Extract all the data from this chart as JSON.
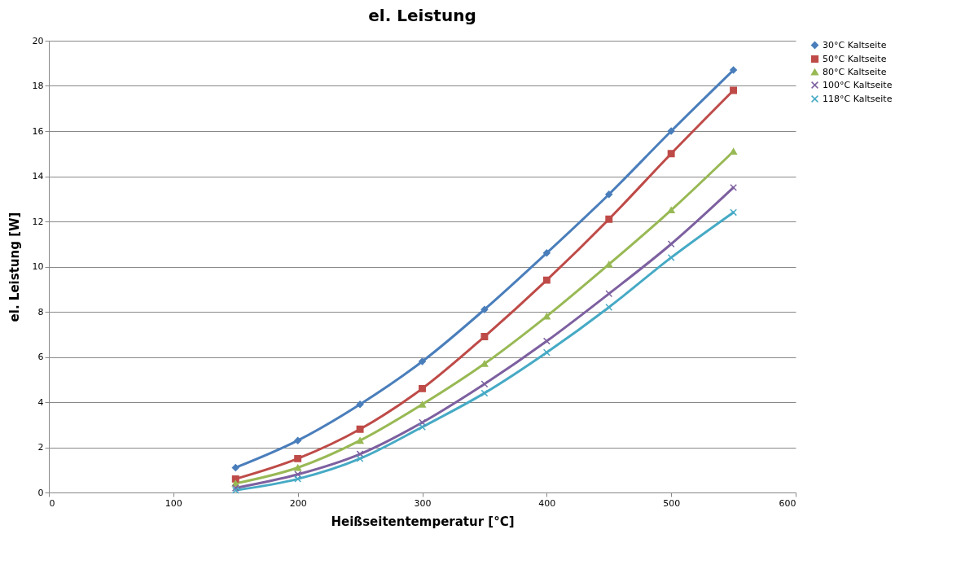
{
  "chart_data": {
    "type": "line",
    "title": "el. Leistung",
    "xlabel": "Heißseitentemperatur [°C]",
    "ylabel": "el. Leistung [W]",
    "x": [
      150,
      200,
      250,
      300,
      350,
      400,
      450,
      500,
      550
    ],
    "xlim": [
      0,
      600
    ],
    "xticks": [
      0,
      100,
      200,
      300,
      400,
      500,
      600
    ],
    "ylim": [
      0,
      20
    ],
    "yticks": [
      0,
      2,
      4,
      6,
      8,
      10,
      12,
      14,
      16,
      18,
      20
    ],
    "grid": "y",
    "legend": "right",
    "series": [
      {
        "name": "30°C Kaltseite",
        "color": "#4a7ebb",
        "marker": "diamond",
        "values": [
          1.1,
          2.3,
          3.9,
          5.8,
          8.1,
          10.6,
          13.2,
          16.0,
          18.7
        ]
      },
      {
        "name": "50°C Kaltseite",
        "color": "#be4b48",
        "marker": "square",
        "values": [
          0.6,
          1.5,
          2.8,
          4.6,
          6.9,
          9.4,
          12.1,
          15.0,
          17.8
        ]
      },
      {
        "name": "80°C Kaltseite",
        "color": "#98b954",
        "marker": "triangle",
        "values": [
          0.4,
          1.1,
          2.3,
          3.9,
          5.7,
          7.8,
          10.1,
          12.5,
          15.1
        ]
      },
      {
        "name": "100°C Kaltseite",
        "color": "#7d60a0",
        "marker": "cross",
        "values": [
          0.2,
          0.8,
          1.7,
          3.1,
          4.8,
          6.7,
          8.8,
          11.0,
          13.5
        ]
      },
      {
        "name": "118°C Kaltseite",
        "color": "#46aac5",
        "marker": "cross",
        "values": [
          0.1,
          0.6,
          1.5,
          2.9,
          4.4,
          6.2,
          8.2,
          10.4,
          12.4
        ]
      }
    ]
  }
}
